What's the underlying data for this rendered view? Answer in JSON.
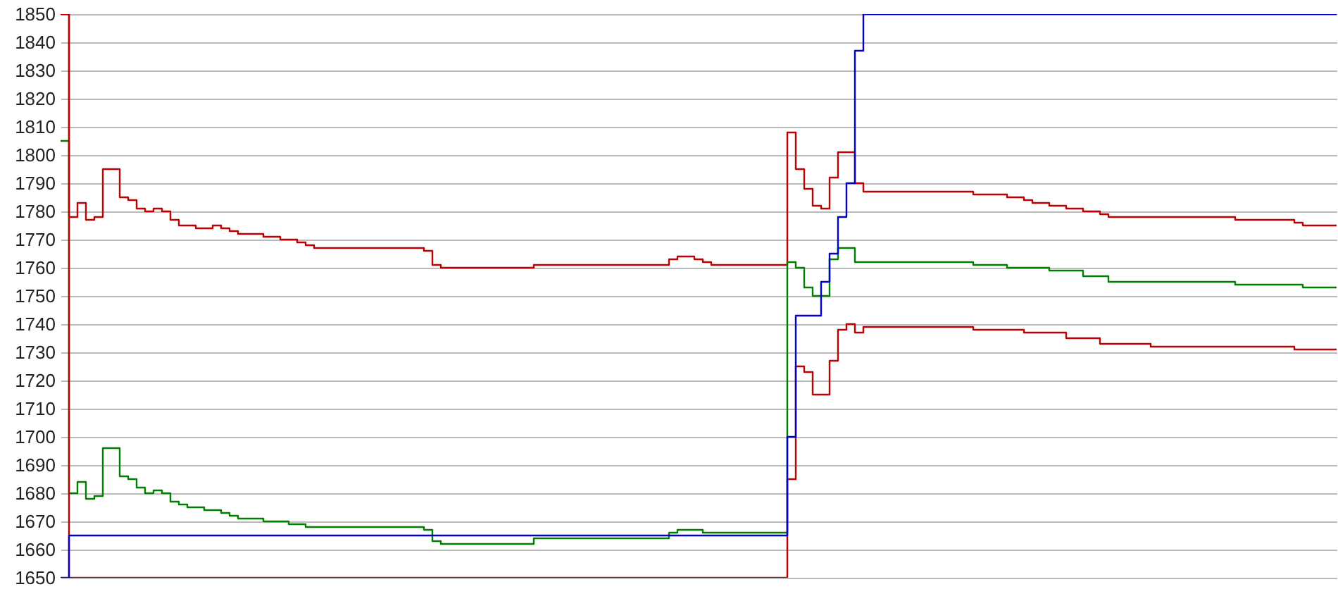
{
  "chart_data": {
    "type": "step",
    "categories": [
      null,
      null,
      null,
      null,
      null,
      null,
      null,
      null,
      null,
      null,
      null,
      null,
      null,
      null,
      null,
      null,
      null,
      null,
      null,
      null,
      null,
      null,
      null,
      null,
      null,
      null,
      null,
      null,
      null,
      null,
      null,
      null,
      null,
      null,
      null,
      null,
      null,
      null,
      null,
      null,
      null,
      null,
      null,
      null,
      null,
      null,
      null,
      null,
      null,
      null,
      null,
      null,
      null,
      null,
      null,
      null,
      null,
      null,
      null,
      null,
      null,
      null,
      null,
      null,
      null,
      null,
      null,
      null,
      null,
      null,
      null,
      null,
      null,
      null,
      null,
      null,
      null,
      null,
      null,
      null,
      null,
      null,
      null,
      null,
      null,
      null,
      null,
      null,
      null,
      null,
      null,
      null,
      null,
      null,
      null,
      null,
      null,
      null,
      null,
      null,
      null,
      null,
      null,
      null,
      null,
      null,
      null,
      null,
      null,
      null,
      null,
      null,
      null,
      null,
      null,
      null,
      null,
      null,
      null,
      null,
      null,
      null,
      null,
      null,
      null,
      null,
      null,
      null,
      null,
      null,
      null,
      null,
      null,
      null,
      null,
      null,
      null,
      null,
      null,
      null,
      null,
      null,
      null,
      null,
      null,
      null,
      null,
      null,
      null,
      null,
      null,
      null
    ],
    "series": [
      {
        "color": "#c00000",
        "values": [
          1850,
          1778,
          1783,
          1777,
          1778,
          1795,
          1795,
          1785,
          1784,
          1781,
          1780,
          1781,
          1780,
          1777,
          1775,
          1775,
          1774,
          1774,
          1775,
          1774,
          1773,
          1772,
          1772,
          1772,
          1771,
          1771,
          1770,
          1770,
          1769,
          1768,
          1767,
          1767,
          1767,
          1767,
          1767,
          1767,
          1767,
          1767,
          1767,
          1767,
          1767,
          1767,
          1767,
          1766,
          1761,
          1760,
          1760,
          1760,
          1760,
          1760,
          1760,
          1760,
          1760,
          1760,
          1760,
          1760,
          1761,
          1761,
          1761,
          1761,
          1761,
          1761,
          1761,
          1761,
          1761,
          1761,
          1761,
          1761,
          1761,
          1761,
          1761,
          1761,
          1763,
          1764,
          1764,
          1763,
          1762,
          1761,
          1761,
          1761,
          1761,
          1761,
          1761,
          1761,
          1761,
          1761,
          1808,
          1795,
          1788,
          1782,
          1781,
          1792,
          1801,
          1801,
          1790,
          1787,
          1787,
          1787,
          1787,
          1787,
          1787,
          1787,
          1787,
          1787,
          1787,
          1787,
          1787,
          1787,
          1786,
          1786,
          1786,
          1786,
          1785,
          1785,
          1784,
          1783,
          1783,
          1782,
          1782,
          1781,
          1781,
          1780,
          1780,
          1779,
          1778,
          1778,
          1778,
          1778,
          1778,
          1778,
          1778,
          1778,
          1778,
          1778,
          1778,
          1778,
          1778,
          1778,
          1778,
          1777,
          1777,
          1777,
          1777,
          1777,
          1777,
          1777,
          1776,
          1775,
          1775,
          1775,
          1775,
          1775
        ]
      },
      {
        "color": "#008000",
        "values": [
          1805,
          1680,
          1684,
          1678,
          1679,
          1696,
          1696,
          1686,
          1685,
          1682,
          1680,
          1681,
          1680,
          1677,
          1676,
          1675,
          1675,
          1674,
          1674,
          1673,
          1672,
          1671,
          1671,
          1671,
          1670,
          1670,
          1670,
          1669,
          1669,
          1668,
          1668,
          1668,
          1668,
          1668,
          1668,
          1668,
          1668,
          1668,
          1668,
          1668,
          1668,
          1668,
          1668,
          1667,
          1663,
          1662,
          1662,
          1662,
          1662,
          1662,
          1662,
          1662,
          1662,
          1662,
          1662,
          1662,
          1664,
          1664,
          1664,
          1664,
          1664,
          1664,
          1664,
          1664,
          1664,
          1664,
          1664,
          1664,
          1664,
          1664,
          1664,
          1664,
          1666,
          1667,
          1667,
          1667,
          1666,
          1666,
          1666,
          1666,
          1666,
          1666,
          1666,
          1666,
          1666,
          1666,
          1762,
          1760,
          1753,
          1750,
          1750,
          1763,
          1767,
          1767,
          1762,
          1762,
          1762,
          1762,
          1762,
          1762,
          1762,
          1762,
          1762,
          1762,
          1762,
          1762,
          1762,
          1762,
          1761,
          1761,
          1761,
          1761,
          1760,
          1760,
          1760,
          1760,
          1760,
          1759,
          1759,
          1759,
          1759,
          1757,
          1757,
          1757,
          1755,
          1755,
          1755,
          1755,
          1755,
          1755,
          1755,
          1755,
          1755,
          1755,
          1755,
          1755,
          1755,
          1755,
          1755,
          1754,
          1754,
          1754,
          1754,
          1754,
          1754,
          1754,
          1754,
          1753,
          1753,
          1753,
          1753,
          1753
        ]
      },
      {
        "color": "#c00000",
        "values": [
          1850,
          1650,
          1650,
          1650,
          1650,
          1650,
          1650,
          1650,
          1650,
          1650,
          1650,
          1650,
          1650,
          1650,
          1650,
          1650,
          1650,
          1650,
          1650,
          1650,
          1650,
          1650,
          1650,
          1650,
          1650,
          1650,
          1650,
          1650,
          1650,
          1650,
          1650,
          1650,
          1650,
          1650,
          1650,
          1650,
          1650,
          1650,
          1650,
          1650,
          1650,
          1650,
          1650,
          1650,
          1650,
          1650,
          1650,
          1650,
          1650,
          1650,
          1650,
          1650,
          1650,
          1650,
          1650,
          1650,
          1650,
          1650,
          1650,
          1650,
          1650,
          1650,
          1650,
          1650,
          1650,
          1650,
          1650,
          1650,
          1650,
          1650,
          1650,
          1650,
          1650,
          1650,
          1650,
          1650,
          1650,
          1650,
          1650,
          1650,
          1650,
          1650,
          1650,
          1650,
          1650,
          1650,
          1685,
          1725,
          1723,
          1715,
          1715,
          1727,
          1738,
          1740,
          1737,
          1739,
          1739,
          1739,
          1739,
          1739,
          1739,
          1739,
          1739,
          1739,
          1739,
          1739,
          1739,
          1739,
          1738,
          1738,
          1738,
          1738,
          1738,
          1738,
          1737,
          1737,
          1737,
          1737,
          1737,
          1735,
          1735,
          1735,
          1735,
          1733,
          1733,
          1733,
          1733,
          1733,
          1733,
          1732,
          1732,
          1732,
          1732,
          1732,
          1732,
          1732,
          1732,
          1732,
          1732,
          1732,
          1732,
          1732,
          1732,
          1732,
          1732,
          1732,
          1731,
          1731,
          1731,
          1731,
          1731,
          1731
        ]
      },
      {
        "color": "#0000cc",
        "values": [
          1650,
          1665,
          1665,
          1665,
          1665,
          1665,
          1665,
          1665,
          1665,
          1665,
          1665,
          1665,
          1665,
          1665,
          1665,
          1665,
          1665,
          1665,
          1665,
          1665,
          1665,
          1665,
          1665,
          1665,
          1665,
          1665,
          1665,
          1665,
          1665,
          1665,
          1665,
          1665,
          1665,
          1665,
          1665,
          1665,
          1665,
          1665,
          1665,
          1665,
          1665,
          1665,
          1665,
          1665,
          1665,
          1665,
          1665,
          1665,
          1665,
          1665,
          1665,
          1665,
          1665,
          1665,
          1665,
          1665,
          1665,
          1665,
          1665,
          1665,
          1665,
          1665,
          1665,
          1665,
          1665,
          1665,
          1665,
          1665,
          1665,
          1665,
          1665,
          1665,
          1665,
          1665,
          1665,
          1665,
          1665,
          1665,
          1665,
          1665,
          1665,
          1665,
          1665,
          1665,
          1665,
          1665,
          1700,
          1743,
          1743,
          1743,
          1755,
          1765,
          1778,
          1790,
          1837,
          1850,
          1850,
          1850,
          1850,
          1850,
          1850,
          1850,
          1850,
          1850,
          1850,
          1850,
          1850,
          1850,
          1850,
          1850,
          1850,
          1850,
          1850,
          1850,
          1850,
          1850,
          1850,
          1850,
          1850,
          1850,
          1850,
          1850,
          1850,
          1850,
          1850,
          1850,
          1850,
          1850,
          1850,
          1850,
          1850,
          1850,
          1850,
          1850,
          1850,
          1850,
          1850,
          1850,
          1850,
          1850,
          1850,
          1850,
          1850,
          1850,
          1850,
          1850,
          1850,
          1850,
          1850,
          1850,
          1850,
          1850
        ]
      }
    ],
    "ylim": [
      1650,
      1850
    ],
    "yticks": [
      1650,
      1660,
      1670,
      1680,
      1690,
      1700,
      1710,
      1720,
      1730,
      1740,
      1750,
      1760,
      1770,
      1780,
      1790,
      1800,
      1810,
      1820,
      1830,
      1840,
      1850
    ],
    "grid": "y",
    "tick_labels": "y"
  }
}
